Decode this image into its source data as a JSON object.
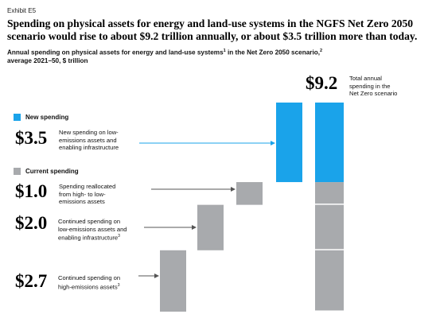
{
  "exhibit": "Exhibit E5",
  "title": "Spending on physical assets for energy and land-use systems in the NGFS Net Zero 2050 scenario would rise to about $9.2 trillion annually, or about $3.5 trillion more than today.",
  "subtitle": {
    "part1": "Annual spending on physical assets for energy and land-use systems",
    "sup1": "1",
    "part2": " in the Net Zero 2050 scenario,",
    "sup2": "2",
    "line2": "average 2021–50, $ trillion"
  },
  "legend": {
    "new_label": "New spending",
    "current_label": "Current spending"
  },
  "colors": {
    "new": "#1aa3ea",
    "current": "#a8aaad",
    "arrow": "#1aa3ea",
    "connector": "#555555"
  },
  "items": {
    "new": {
      "value_label": "$3.5",
      "desc_line1": "New spending on low-",
      "desc_line2": "emissions assets and",
      "desc_line3": "enabling infrastructure"
    },
    "reallocated": {
      "value_label": "$1.0",
      "desc_line1": "Spending reallocated",
      "desc_line2": "from high- to low-",
      "desc_line3": "emissions assets"
    },
    "low": {
      "value_label": "$2.0",
      "desc_line1": "Continued spending on",
      "desc_line2": "low-emissions assets and",
      "desc_line3": "enabling infrastructure",
      "sup": "3"
    },
    "high": {
      "value_label": "$2.7",
      "desc_line1": "Continued spending on",
      "desc_line2": "high-emissions assets",
      "sup": "3"
    }
  },
  "total": {
    "value_label": "$9.2",
    "desc_line1": "Total annual",
    "desc_line2": "spending in the",
    "desc_line3": "Net Zero scenario"
  },
  "chart_data": {
    "type": "bar",
    "subtype": "waterfall",
    "unit": "$ trillion",
    "ylim": [
      0,
      9.2
    ],
    "grid": false,
    "steps": [
      {
        "name": "Continued spending on high-emissions assets",
        "value": 2.7,
        "kind": "current"
      },
      {
        "name": "Continued spending on low-emissions assets and enabling infrastructure",
        "value": 2.0,
        "kind": "current"
      },
      {
        "name": "Spending reallocated from high- to low-emissions assets",
        "value": 1.0,
        "kind": "current"
      },
      {
        "name": "New spending on low-emissions assets and enabling infrastructure",
        "value": 3.5,
        "kind": "new"
      }
    ],
    "total": {
      "name": "Total annual spending in the Net Zero scenario",
      "value": 9.2,
      "stack": [
        2.7,
        2.0,
        1.0,
        3.5
      ]
    }
  }
}
